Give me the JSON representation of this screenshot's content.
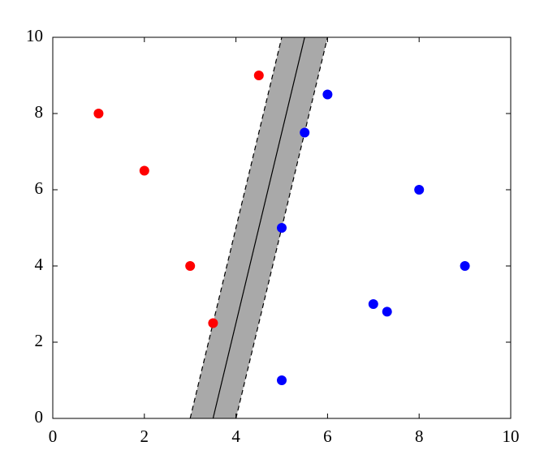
{
  "chart_data": {
    "type": "scatter",
    "xlim": [
      0,
      10
    ],
    "ylim": [
      0,
      10
    ],
    "xticks": [
      0,
      2,
      4,
      6,
      8,
      10
    ],
    "yticks": [
      0,
      2,
      4,
      6,
      8,
      10
    ],
    "series": [
      {
        "color": "#ff0000",
        "x": [
          1,
          2,
          3,
          3.5,
          4.5
        ],
        "values": [
          8,
          6.5,
          4,
          2.5,
          9
        ]
      },
      {
        "color": "#0000ff",
        "x": [
          5,
          5,
          5.5,
          6,
          7,
          7.3,
          8,
          9
        ],
        "values": [
          1,
          5,
          7.5,
          8.5,
          3,
          2.8,
          6,
          4
        ]
      }
    ],
    "lines": [
      {
        "x": [
          3,
          5
        ],
        "values": [
          0,
          10
        ],
        "color": "#000000",
        "dashed": true
      },
      {
        "x": [
          3.5,
          5.5
        ],
        "values": [
          0,
          10
        ],
        "color": "#000000",
        "dashed": false
      },
      {
        "x": [
          4,
          6
        ],
        "values": [
          0,
          10
        ],
        "color": "#000000",
        "dashed": true
      }
    ],
    "band_color": "#a9a9a9"
  }
}
